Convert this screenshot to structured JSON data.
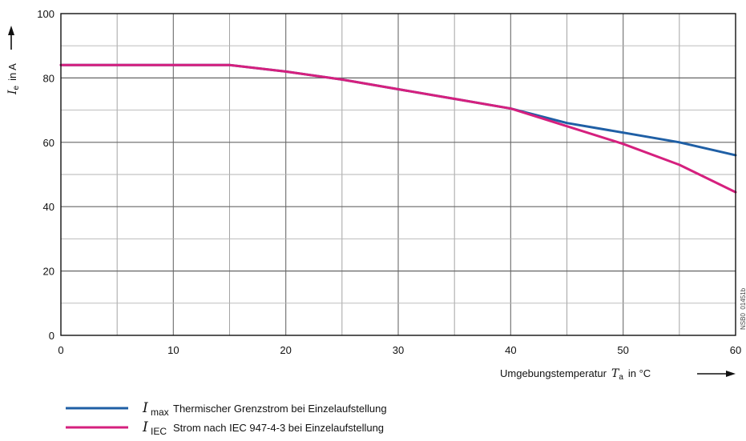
{
  "chart_data": {
    "type": "line",
    "xlim": [
      0,
      60
    ],
    "ylim": [
      0,
      100
    ],
    "x_ticks": [
      "0",
      "10",
      "20",
      "30",
      "40",
      "50",
      "60"
    ],
    "y_ticks": [
      "0",
      "20",
      "40",
      "60",
      "80",
      "100"
    ],
    "grid": true,
    "ylabel": {
      "symbol": "I",
      "sub": "e",
      "rest": "in A"
    },
    "xlabel": {
      "prefix": "Umgebungstemperatur",
      "symbol": "T",
      "sub": "a",
      "rest": "in °C"
    },
    "series": [
      {
        "symbol": "I",
        "sub": "max",
        "name": "Thermischer Grenzstrom bei Einzelaufstellung",
        "color": "#1f5fa5",
        "x": [
          0,
          15,
          20,
          25,
          30,
          35,
          40,
          45,
          50,
          55,
          60
        ],
        "y": [
          84,
          84,
          82,
          79.5,
          76.5,
          73.5,
          70.5,
          66,
          63,
          60,
          56
        ]
      },
      {
        "symbol": "I",
        "sub": "IEC",
        "name": "Strom nach IEC 947-4-3 bei Einzelaufstellung",
        "color": "#d5207e",
        "x": [
          0,
          15,
          20,
          25,
          30,
          35,
          40,
          45,
          50,
          55,
          60
        ],
        "y": [
          84,
          84,
          82,
          79.5,
          76.5,
          73.5,
          70.5,
          65,
          59.5,
          53,
          44.5
        ]
      }
    ],
    "code_label": "NSB0_01451b",
    "legend": "bottom-left"
  }
}
